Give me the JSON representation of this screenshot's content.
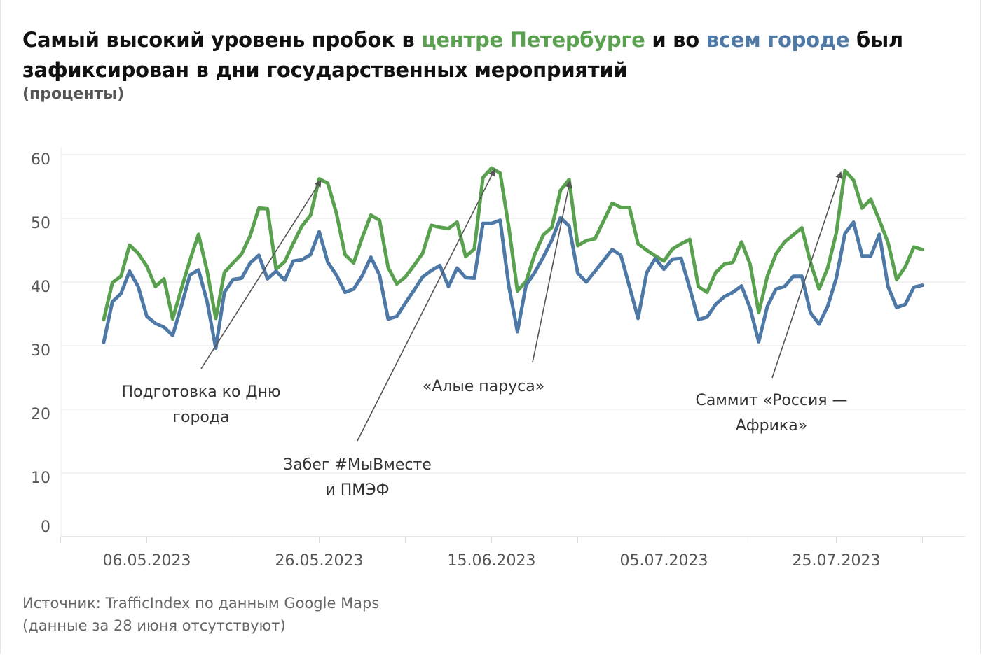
{
  "title": {
    "part1": "Самый высокий уровень пробок в ",
    "part2_green": "центре Петербурге",
    "part3": " и во ",
    "part4_blue": "всем городе",
    "part5": " был зафиксирован в дни государственных мероприятий"
  },
  "subtitle": "(проценты)",
  "source": {
    "line1": "Источник: TrafficIndex по данным Google Maps",
    "line2": "(данные за 28 июня отсутствуют)"
  },
  "colors": {
    "center": "#59a14f",
    "city": "#4e79a7",
    "arrow": "#555555"
  },
  "chart_data": {
    "type": "line",
    "title": "Самый высокий уровень пробок в центре Петербурге и во всем городе был зафиксирован в дни государственных мероприятий",
    "ylabel": "проценты",
    "ylim": [
      0,
      60
    ],
    "yticks": [
      "0",
      "10",
      "20",
      "30",
      "40",
      "50",
      "60"
    ],
    "x_start": "01.05.2023",
    "x_end": "04.08.2023",
    "missing": [
      "28.06.2023"
    ],
    "xtick_labels": [
      {
        "day": 5,
        "label": "06.05.2023"
      },
      {
        "day": 25,
        "label": "26.05.2023"
      },
      {
        "day": 45,
        "label": "15.06.2023"
      },
      {
        "day": 65,
        "label": "05.07.2023"
      },
      {
        "day": 85,
        "label": "25.07.2023"
      }
    ],
    "grid": true,
    "series": [
      {
        "name": "центр Петербурга",
        "color": "#59a14f",
        "values": [
          34.1,
          39.9,
          40.9,
          45.8,
          44.5,
          42.5,
          39.3,
          40.5,
          34.2,
          38.9,
          43.4,
          47.5,
          41.7,
          34.3,
          41.5,
          43.0,
          44.4,
          47.3,
          51.6,
          51.5,
          42.0,
          43.2,
          46.1,
          48.8,
          50.5,
          56.2,
          55.5,
          50.8,
          44.3,
          43.0,
          47.0,
          50.5,
          49.7,
          42.3,
          39.7,
          40.8,
          42.6,
          44.5,
          48.9,
          48.6,
          48.4,
          49.4,
          44.0,
          45.2,
          56.4,
          57.9,
          57.1,
          48.6,
          38.6,
          40.1,
          44.3,
          47.4,
          48.6,
          54.4,
          56.1,
          45.7,
          46.5,
          46.8,
          null,
          52.4,
          51.7,
          51.7,
          46.0,
          45.0,
          44.1,
          43.3,
          45.2,
          46.0,
          46.7,
          39.3,
          38.4,
          41.5,
          42.8,
          43.1,
          46.3,
          42.8,
          35.2,
          40.9,
          44.4,
          46.3,
          47.4,
          48.5,
          43.1,
          38.9,
          42.2,
          47.7,
          57.5,
          56.0,
          51.6,
          53.0,
          49.7,
          46.2,
          40.4,
          42.4,
          45.5,
          45.1
        ]
      },
      {
        "name": "весь город",
        "color": "#4e79a7",
        "values": [
          30.5,
          36.9,
          38.2,
          41.7,
          39.3,
          34.6,
          33.5,
          32.9,
          31.6,
          36.2,
          41.1,
          41.9,
          36.9,
          29.6,
          38.4,
          40.4,
          40.6,
          43.0,
          44.2,
          40.5,
          41.7,
          40.3,
          43.3,
          43.5,
          44.3,
          47.9,
          43.1,
          41.1,
          38.4,
          38.9,
          41.0,
          43.9,
          41.1,
          34.2,
          34.6,
          36.7,
          38.7,
          40.8,
          41.8,
          42.6,
          39.3,
          42.2,
          40.7,
          40.6,
          49.2,
          49.2,
          49.7,
          39.4,
          32.2,
          39.5,
          41.5,
          43.9,
          46.6,
          50.1,
          48.8,
          41.4,
          40.0,
          41.7,
          null,
          45.1,
          44.2,
          39.3,
          34.3,
          41.5,
          43.7,
          42.0,
          43.6,
          43.7,
          39.0,
          34.1,
          34.5,
          36.5,
          37.7,
          38.4,
          39.4,
          35.9,
          30.6,
          36.2,
          38.9,
          39.3,
          40.9,
          40.9,
          35.2,
          33.4,
          36.2,
          40.6,
          47.6,
          49.4,
          44.1,
          44.1,
          47.5,
          39.3,
          36.0,
          36.5,
          39.2,
          39.5
        ]
      }
    ],
    "annotations": [
      {
        "lines": [
          "Подготовка ко Дню",
          "города"
        ],
        "target_day": 25,
        "target_value": 56.2
      },
      {
        "lines": [
          "Забег #МыВместе",
          "и ПМЭФ"
        ],
        "target_day": 45,
        "target_value": 57.9
      },
      {
        "lines": [
          "«Алые паруса»"
        ],
        "target_day": 54,
        "target_value": 56.1
      },
      {
        "lines": [
          "Саммит «Россия —",
          "Африка»"
        ],
        "target_day": 86,
        "target_value": 57.5
      }
    ]
  }
}
